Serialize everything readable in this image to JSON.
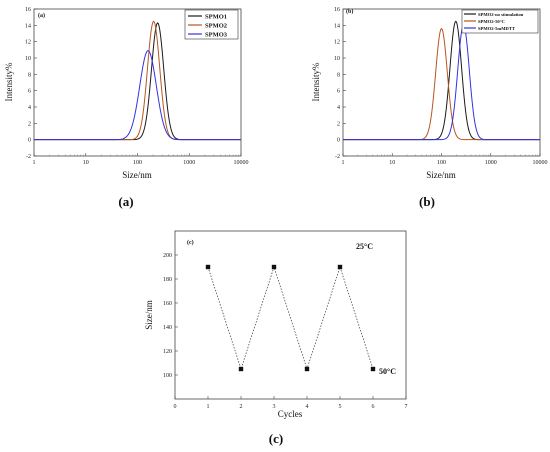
{
  "chart_data": [
    {
      "type": "line",
      "panel_label": "(a)",
      "caption": "(a)",
      "xlabel": "Size/nm",
      "ylabel": "Intensity%",
      "xscale": "log",
      "xlim": [
        1,
        10000
      ],
      "ylim": [
        -2,
        16
      ],
      "x_ticks": [
        "1",
        "10",
        "100",
        "1000",
        "10000"
      ],
      "y_ticks": [
        "-2",
        "0",
        "2",
        "4",
        "6",
        "8",
        "10",
        "12",
        "14",
        "16"
      ],
      "legend_position": "top-right",
      "series": [
        {
          "name": "SPMO1",
          "color": "#1a1a1a",
          "peak_x": 245,
          "peak_y": 14.3,
          "width_log": 0.118
        },
        {
          "name": "SPMO2",
          "color": "#b8561e",
          "peak_x": 205,
          "peak_y": 14.5,
          "width_log": 0.118
        },
        {
          "name": "SPMO3",
          "color": "#3333dd",
          "peak_x": 160,
          "peak_y": 10.9,
          "width_log": 0.16
        }
      ]
    },
    {
      "type": "line",
      "panel_label": "(b)",
      "caption": "(b)",
      "xlabel": "Size/nm",
      "ylabel": "Intensity%",
      "xscale": "log",
      "xlim": [
        1,
        10000
      ],
      "ylim": [
        -2,
        16
      ],
      "x_ticks": [
        "1",
        "10",
        "100",
        "1000",
        "10000"
      ],
      "y_ticks": [
        "-2",
        "0",
        "2",
        "4",
        "6",
        "8",
        "10",
        "12",
        "14",
        "16"
      ],
      "legend_position": "top-right",
      "series": [
        {
          "name": "SPMO2-no stimulation",
          "color": "#1a1a1a",
          "peak_x": 195,
          "peak_y": 14.5,
          "width_log": 0.118
        },
        {
          "name": "SPMO2-50°C",
          "color": "#b8561e",
          "peak_x": 100,
          "peak_y": 13.6,
          "width_log": 0.118
        },
        {
          "name": "SPMO2-5mMDTT",
          "color": "#3333dd",
          "peak_x": 280,
          "peak_y": 14.0,
          "width_log": 0.118
        }
      ]
    },
    {
      "type": "scatter",
      "panel_label": "(c)",
      "caption": "(c)",
      "xlabel": "Cycles",
      "ylabel": "Size/nm",
      "xlim": [
        0,
        7
      ],
      "ylim": [
        80,
        220
      ],
      "x_ticks": [
        "0",
        "1",
        "2",
        "3",
        "4",
        "5",
        "6",
        "7"
      ],
      "y_ticks": [
        "100",
        "120",
        "140",
        "160",
        "180",
        "200"
      ],
      "x": [
        1,
        2,
        3,
        4,
        5,
        6
      ],
      "y": [
        190,
        105,
        190,
        105,
        190,
        105
      ],
      "annotations": [
        "25°C",
        "50°C"
      ],
      "line_style": "dotted"
    }
  ]
}
